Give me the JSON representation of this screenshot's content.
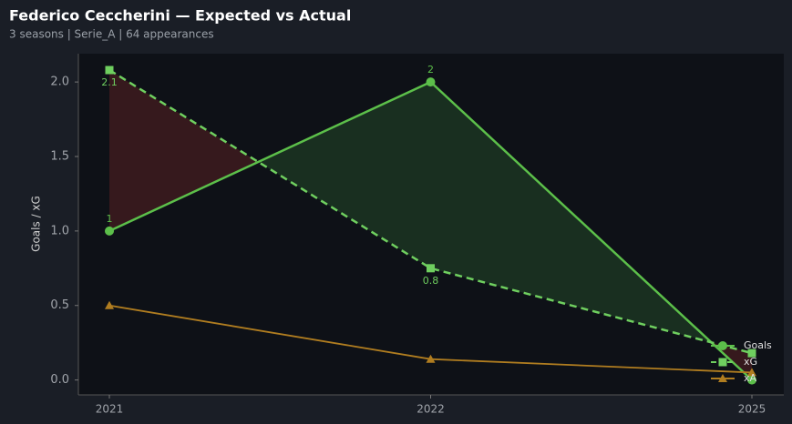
{
  "chart_data": {
    "type": "line",
    "title": "Federico Ceccherini — Expected vs Actual",
    "subtitle": "3 seasons | Serie_A | 64 appearances",
    "y_label": "Goals / xG",
    "categories": [
      "2021",
      "2022",
      "2025"
    ],
    "series": [
      {
        "name": "Goals",
        "color": "#5cbf4a",
        "dash": false,
        "marker": "circle",
        "values": [
          1,
          2,
          0
        ],
        "value_labels": [
          "1",
          "2",
          null
        ]
      },
      {
        "name": "xG",
        "color": "#6fcf5f",
        "dash": true,
        "marker": "square",
        "values": [
          2.08,
          0.75,
          0.18
        ],
        "value_labels": [
          "2.1",
          "0.8",
          null
        ]
      },
      {
        "name": "xA",
        "color": "#b07d20",
        "dash": false,
        "marker": "triangle",
        "values": [
          0.5,
          0.14,
          0.05
        ]
      }
    ],
    "ylim": [
      -0.1,
      2.19
    ],
    "yticks": [
      {
        "value": 0,
        "label": "0.0"
      },
      {
        "value": 0.5,
        "label": "0.5"
      },
      {
        "value": 1,
        "label": "1.0"
      },
      {
        "value": 1.5,
        "label": "1.5"
      },
      {
        "value": 2,
        "label": "2.0"
      }
    ],
    "grid": false,
    "legend": "lower right"
  }
}
